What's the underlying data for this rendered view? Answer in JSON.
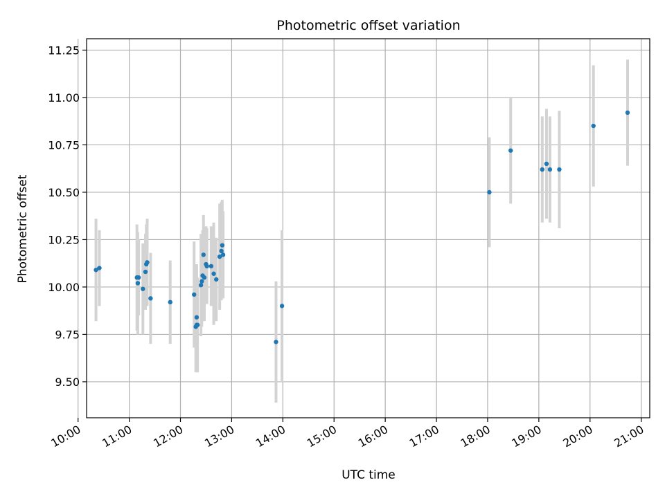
{
  "chart_data": {
    "type": "scatter",
    "title": "Photometric offset variation",
    "xlabel": "UTC time",
    "ylabel": "Photometric offset",
    "grid": true,
    "xlim": [
      "10:10",
      "21:10"
    ],
    "ylim": [
      9.31,
      11.31
    ],
    "x_ticks": [
      "10:00",
      "11:00",
      "12:00",
      "13:00",
      "14:00",
      "15:00",
      "16:00",
      "17:00",
      "18:00",
      "19:00",
      "20:00",
      "21:00"
    ],
    "y_ticks": [
      "9.50",
      "9.75",
      "10.00",
      "10.25",
      "10.50",
      "10.75",
      "11.00",
      "11.25"
    ],
    "point_color": "#1f77b4",
    "errorbar_color": "#d3d3d3",
    "points": [
      {
        "x": "10:21",
        "y": 10.09,
        "yerr": 0.27
      },
      {
        "x": "10:25",
        "y": 10.1,
        "yerr": 0.2
      },
      {
        "x": "11:09",
        "y": 10.05,
        "yerr": 0.28
      },
      {
        "x": "11:10",
        "y": 10.02,
        "yerr": 0.27
      },
      {
        "x": "11:11",
        "y": 10.05,
        "yerr": 0.2
      },
      {
        "x": "11:16",
        "y": 9.99,
        "yerr": 0.24
      },
      {
        "x": "11:19",
        "y": 10.08,
        "yerr": 0.2
      },
      {
        "x": "11:20",
        "y": 10.12,
        "yerr": 0.21
      },
      {
        "x": "11:21",
        "y": 10.13,
        "yerr": 0.23
      },
      {
        "x": "11:25",
        "y": 9.94,
        "yerr": 0.24
      },
      {
        "x": "11:48",
        "y": 9.92,
        "yerr": 0.22
      },
      {
        "x": "12:16",
        "y": 9.96,
        "yerr": 0.28
      },
      {
        "x": "12:18",
        "y": 9.79,
        "yerr": 0.24
      },
      {
        "x": "12:19",
        "y": 9.84,
        "yerr": 0.28
      },
      {
        "x": "12:19",
        "y": 9.8,
        "yerr": 0.25
      },
      {
        "x": "12:20",
        "y": 9.8,
        "yerr": 0.25
      },
      {
        "x": "12:24",
        "y": 10.01,
        "yerr": 0.27
      },
      {
        "x": "12:25",
        "y": 10.03,
        "yerr": 0.24
      },
      {
        "x": "12:26",
        "y": 10.06,
        "yerr": 0.24
      },
      {
        "x": "12:27",
        "y": 10.17,
        "yerr": 0.21
      },
      {
        "x": "12:28",
        "y": 10.05,
        "yerr": 0.23
      },
      {
        "x": "12:30",
        "y": 10.12,
        "yerr": 0.2
      },
      {
        "x": "12:31",
        "y": 10.11,
        "yerr": 0.2
      },
      {
        "x": "12:36",
        "y": 10.11,
        "yerr": 0.21
      },
      {
        "x": "12:39",
        "y": 10.07,
        "yerr": 0.27
      },
      {
        "x": "12:42",
        "y": 10.04,
        "yerr": 0.22
      },
      {
        "x": "12:46",
        "y": 10.16,
        "yerr": 0.28
      },
      {
        "x": "12:48",
        "y": 10.19,
        "yerr": 0.26
      },
      {
        "x": "12:49",
        "y": 10.22,
        "yerr": 0.24
      },
      {
        "x": "12:50",
        "y": 10.17,
        "yerr": 0.23
      },
      {
        "x": "13:52",
        "y": 9.71,
        "yerr": 0.32
      },
      {
        "x": "13:59",
        "y": 9.9,
        "yerr": 0.4
      },
      {
        "x": "18:02",
        "y": 10.5,
        "yerr": 0.29
      },
      {
        "x": "18:27",
        "y": 10.72,
        "yerr": 0.28
      },
      {
        "x": "19:04",
        "y": 10.62,
        "yerr": 0.28
      },
      {
        "x": "19:09",
        "y": 10.65,
        "yerr": 0.29
      },
      {
        "x": "19:13",
        "y": 10.62,
        "yerr": 0.28
      },
      {
        "x": "19:24",
        "y": 10.62,
        "yerr": 0.31
      },
      {
        "x": "20:04",
        "y": 10.85,
        "yerr": 0.32
      },
      {
        "x": "20:44",
        "y": 10.92,
        "yerr": 0.28
      }
    ]
  }
}
